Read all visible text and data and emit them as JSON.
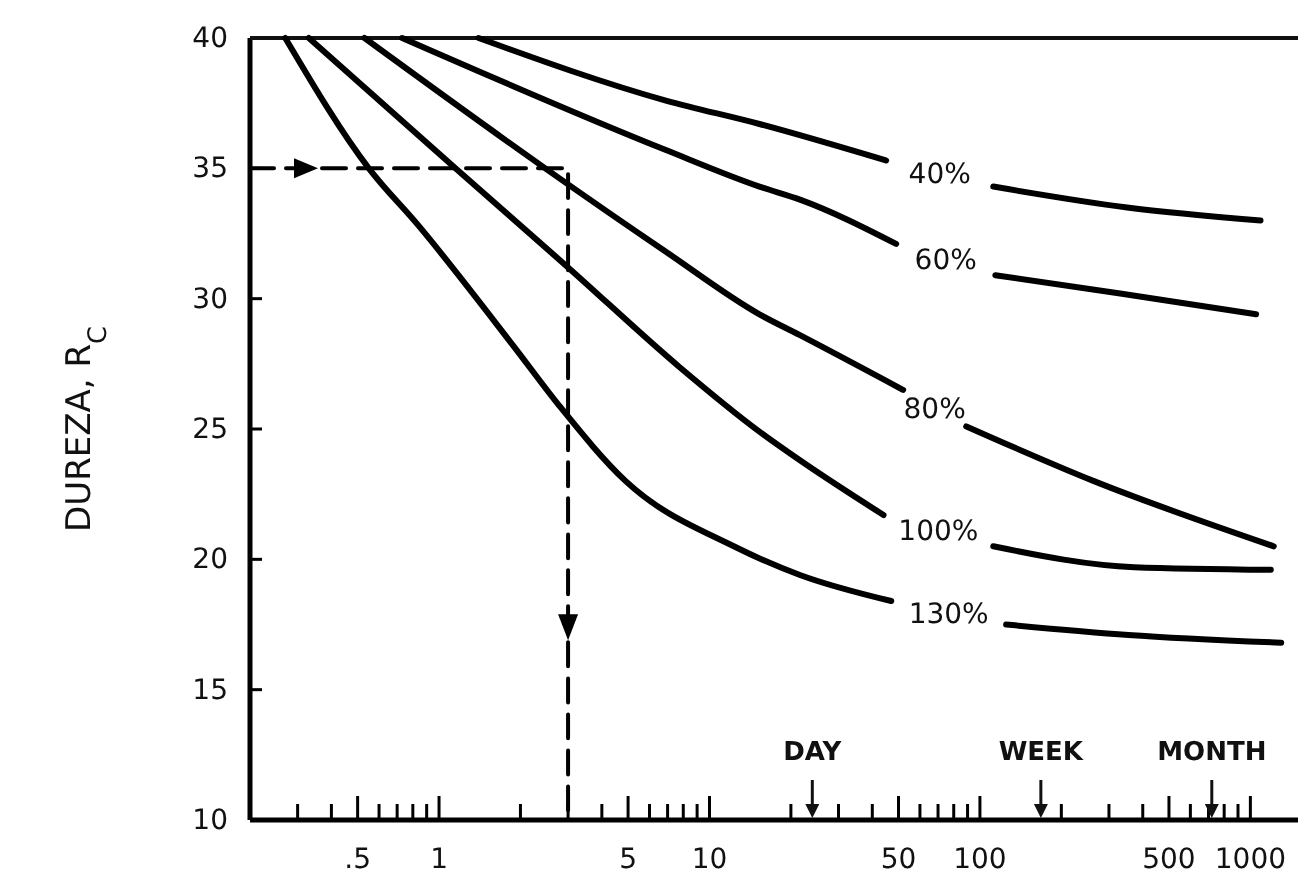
{
  "chart_data": {
    "type": "line",
    "ylabel": "DUREZA, R$_{C}$",
    "log": "x",
    "grid": false,
    "xlim": [
      0.2,
      1500
    ],
    "ylim": [
      10,
      40
    ],
    "xticks": [
      {
        "value": 0.3,
        "label": null
      },
      {
        "value": 0.4,
        "label": null
      },
      {
        "value": 0.5,
        "label": ".5"
      },
      {
        "value": 0.6,
        "label": null
      },
      {
        "value": 0.7,
        "label": null
      },
      {
        "value": 0.8,
        "label": null
      },
      {
        "value": 0.9,
        "label": null
      },
      1,
      {
        "value": 2,
        "label": null
      },
      {
        "value": 3,
        "label": null
      },
      {
        "value": 4,
        "label": null
      },
      5,
      {
        "value": 6,
        "label": null
      },
      {
        "value": 7,
        "label": null
      },
      {
        "value": 8,
        "label": null
      },
      {
        "value": 9,
        "label": null
      },
      10,
      {
        "value": 20,
        "label": null
      },
      {
        "value": 30,
        "label": null
      },
      {
        "value": 40,
        "label": null
      },
      50,
      {
        "value": 60,
        "label": null
      },
      {
        "value": 70,
        "label": null
      },
      {
        "value": 80,
        "label": null
      },
      {
        "value": 90,
        "label": null
      },
      100,
      {
        "value": 200,
        "label": null
      },
      {
        "value": 300,
        "label": null
      },
      {
        "value": 400,
        "label": null
      },
      500,
      {
        "value": 600,
        "label": null
      },
      {
        "value": 700,
        "label": null
      },
      {
        "value": 800,
        "label": null
      },
      {
        "value": 900,
        "label": null
      },
      1000
    ],
    "yticks": [
      10,
      15,
      20,
      25,
      30,
      35,
      40
    ],
    "series": [
      {
        "name": "40%",
        "color": "#000000",
        "x": [
          1.4,
          6.9,
          15.3,
          45,
          80,
          112,
          350,
          1090
        ],
        "values": [
          40,
          37.6,
          36.7,
          35.3,
          null,
          34.3,
          33.5,
          33.0
        ]
      },
      {
        "name": "60%",
        "color": "#000000",
        "x": [
          0.73,
          6.9,
          15.3,
          21.6,
          49,
          80,
          114,
          330,
          1050
        ],
        "values": [
          40,
          35.7,
          34.3,
          33.8,
          32.1,
          null,
          30.9,
          30.2,
          29.4
        ]
      },
      {
        "name": "80%",
        "color": "#000000",
        "x": [
          0.53,
          2.47,
          6.9,
          15.3,
          21.6,
          52,
          70,
          89,
          264,
          1220
        ],
        "values": [
          40,
          35,
          31.8,
          29.4,
          28.6,
          26.5,
          null,
          25.1,
          23.0,
          20.5
        ]
      },
      {
        "name": "100%",
        "color": "#000000",
        "x": [
          0.33,
          1.15,
          3,
          7.7,
          15.3,
          21.6,
          44,
          70,
          112,
          372,
          1190
        ],
        "values": [
          40,
          35,
          31.2,
          27.4,
          24.9,
          23.8,
          21.7,
          null,
          20.5,
          19.7,
          19.6
        ]
      },
      {
        "name": "130%",
        "color": "#000000",
        "x": [
          0.27,
          0.55,
          0.84,
          1.88,
          2.78,
          4.9,
          12.3,
          21.6,
          47,
          75,
          125,
          354,
          1300
        ],
        "values": [
          40,
          35,
          32.8,
          28.2,
          25.9,
          23.0,
          20.5,
          19.4,
          18.4,
          null,
          17.5,
          17.1,
          16.8
        ]
      },
      {
        "color": "#000000",
        "line_style": "dashed",
        "x": [
          0.2,
          3,
          3
        ],
        "values": [
          35,
          35,
          10
        ]
      }
    ],
    "ref_lines": [
      {
        "axis": "x",
        "value": 24,
        "label": "DAY"
      },
      {
        "axis": "x",
        "value": 168,
        "label": "WEEK"
      },
      {
        "axis": "x",
        "value": 720,
        "label": "MONTH"
      }
    ]
  }
}
